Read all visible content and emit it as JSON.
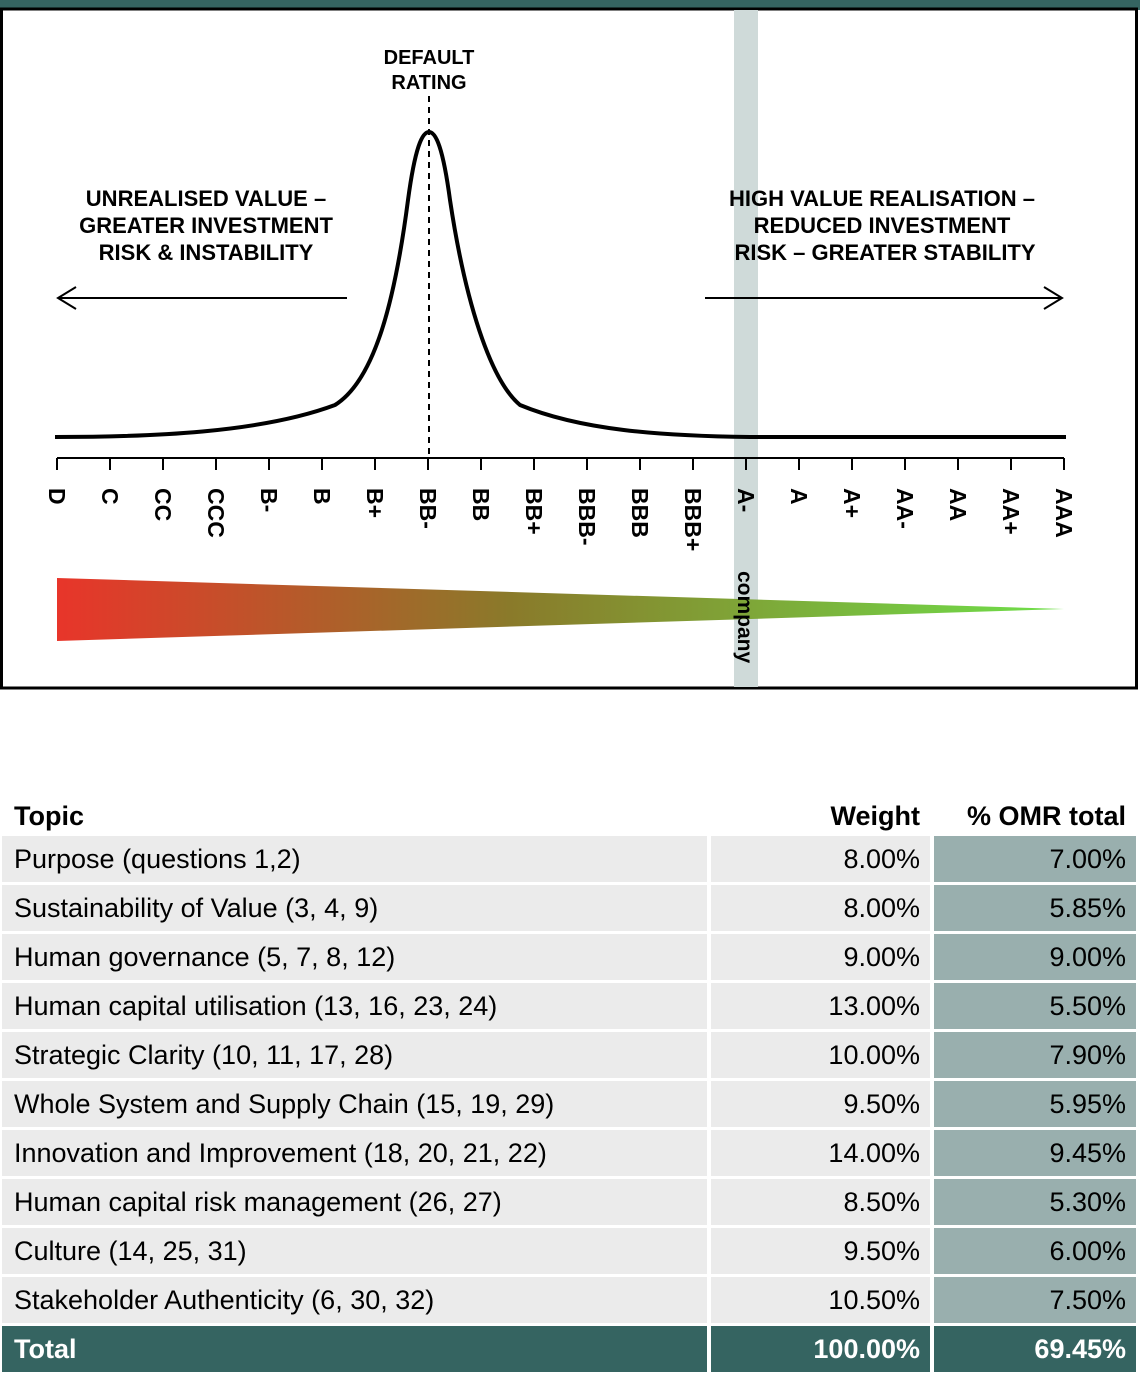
{
  "colors": {
    "header_bar": "#356461",
    "highlight_band": "#cfdad9",
    "gradient_start": "#e8352a",
    "gradient_mid": "#8a7a2a",
    "gradient_end": "#6fe04a",
    "table_row": "#ebebeb",
    "table_omr_cell": "#99afae",
    "table_total": "#356461"
  },
  "chart_data": {
    "type": "line",
    "title": "",
    "x_categories": [
      "D",
      "C",
      "CC",
      "CCC",
      "B-",
      "B",
      "B+",
      "BB-",
      "BB",
      "BB+",
      "BBB-",
      "BBB",
      "BBB+",
      "A-",
      "A",
      "A+",
      "AA-",
      "AA",
      "AA+",
      "AAA"
    ],
    "curve_peak_category": "BB-",
    "peak_label": "DEFAULT RATING",
    "highlight_category": "A-",
    "highlight_label": "company",
    "left_annotation": [
      "UNREALISED VALUE –",
      "GREATER INVESTMENT",
      "RISK & INSTABILITY"
    ],
    "right_annotation": [
      "HIGH VALUE REALISATION –",
      "REDUCED INVESTMENT",
      "RISK – GREATER STABILITY"
    ],
    "left_arrow_direction": "left",
    "right_arrow_direction": "right",
    "gradient_wedge": "red at D tapering to green at AAA"
  },
  "table": {
    "headers": {
      "topic": "Topic",
      "weight": "Weight",
      "omr": "% OMR total"
    },
    "rows": [
      {
        "topic": "Purpose (questions 1,2)",
        "weight": "8.00%",
        "omr": "7.00%"
      },
      {
        "topic": "Sustainability of Value (3, 4, 9)",
        "weight": "8.00%",
        "omr": "5.85%"
      },
      {
        "topic": "Human governance (5, 7, 8, 12)",
        "weight": "9.00%",
        "omr": "9.00%"
      },
      {
        "topic": "Human capital utilisation (13, 16, 23, 24)",
        "weight": "13.00%",
        "omr": "5.50%"
      },
      {
        "topic": "Strategic Clarity (10, 11, 17, 28)",
        "weight": "10.00%",
        "omr": "7.90%"
      },
      {
        "topic": "Whole System and Supply Chain (15, 19, 29)",
        "weight": "9.50%",
        "omr": "5.95%"
      },
      {
        "topic": "Innovation and Improvement (18, 20, 21, 22)",
        "weight": "14.00%",
        "omr": "9.45%"
      },
      {
        "topic": "Human capital risk management (26, 27)",
        "weight": "8.50%",
        "omr": "5.30%"
      },
      {
        "topic": "Culture (14, 25, 31)",
        "weight": "9.50%",
        "omr": "6.00%"
      },
      {
        "topic": "Stakeholder Authenticity (6, 30, 32)",
        "weight": "10.50%",
        "omr": "7.50%"
      }
    ],
    "total": {
      "topic": "Total",
      "weight": "100.00%",
      "omr": "69.45%"
    }
  }
}
